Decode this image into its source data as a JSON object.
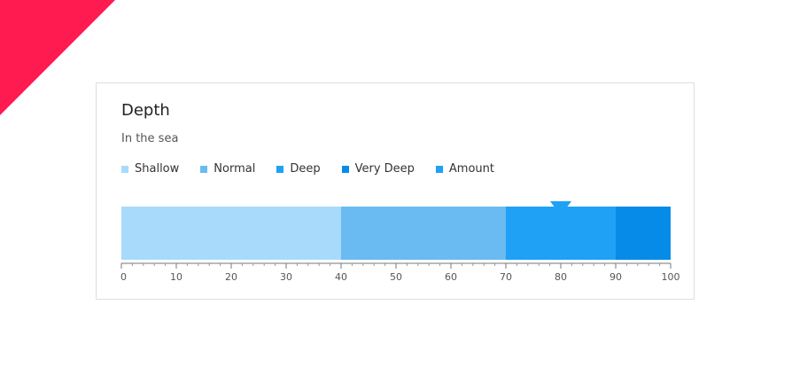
{
  "chart_data": {
    "type": "bar",
    "title": "Depth",
    "subtitle": "In the sea",
    "xlim": [
      0,
      100
    ],
    "major_ticks": [
      0,
      10,
      20,
      30,
      40,
      50,
      60,
      70,
      80,
      90,
      100
    ],
    "minor_step": 2,
    "ranges": [
      {
        "name": "Shallow",
        "from": 0,
        "to": 40,
        "color": "#a8dbfb"
      },
      {
        "name": "Normal",
        "from": 40,
        "to": 70,
        "color": "#6abbf1"
      },
      {
        "name": "Deep",
        "from": 70,
        "to": 90,
        "color": "#1fa1f5"
      },
      {
        "name": "Very Deep",
        "from": 90,
        "to": 100,
        "color": "#078be8"
      }
    ],
    "measure": {
      "name": "Amount",
      "value": 80,
      "color": "#1fa1f5"
    },
    "legend": [
      {
        "label": "Shallow",
        "color": "#a8dbfb"
      },
      {
        "label": "Normal",
        "color": "#6abbf1"
      },
      {
        "label": "Deep",
        "color": "#1fa1f5"
      },
      {
        "label": "Very Deep",
        "color": "#078be8"
      },
      {
        "label": "Amount",
        "color": "#1fa1f5"
      }
    ]
  },
  "decor": {
    "corner_color": "#ff1a50"
  }
}
